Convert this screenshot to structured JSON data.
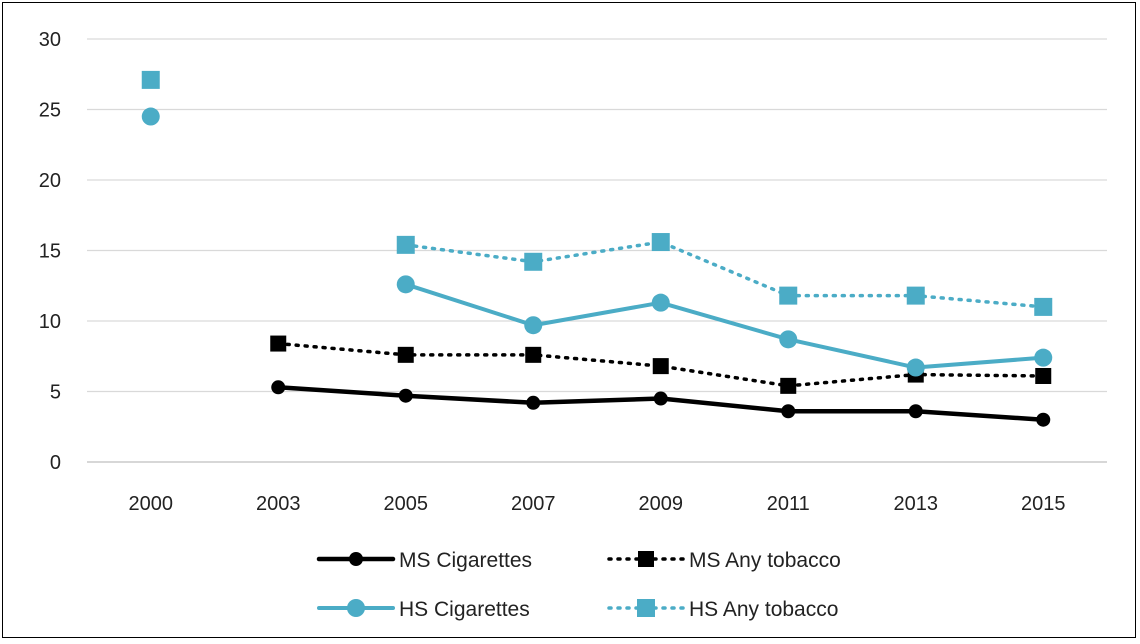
{
  "chart_data": {
    "type": "line",
    "title": "",
    "xlabel": "",
    "ylabel": "",
    "ylim": [
      0,
      30
    ],
    "yticks": [
      "0",
      "5",
      "10",
      "15",
      "20",
      "25",
      "30"
    ],
    "categories": [
      "2000",
      "2003",
      "2005",
      "2007",
      "2009",
      "2011",
      "2013",
      "2015"
    ],
    "grid": "horizontal",
    "legend_position": "bottom",
    "series": [
      {
        "name": "MS Cigarettes",
        "values": [
          null,
          5.3,
          4.7,
          4.2,
          4.5,
          3.6,
          3.6,
          3.0
        ],
        "color": "#000000",
        "style": "solid",
        "marker": "circle"
      },
      {
        "name": "MS Any tobacco",
        "values": [
          null,
          8.4,
          7.6,
          7.6,
          6.8,
          5.4,
          6.2,
          6.1
        ],
        "color": "#000000",
        "style": "dotted",
        "marker": "square"
      },
      {
        "name": "HS Cigarettes",
        "values": [
          24.5,
          null,
          12.6,
          9.7,
          11.3,
          8.7,
          6.7,
          7.4
        ],
        "color": "#4BACC6",
        "style": "solid",
        "marker": "circle"
      },
      {
        "name": "HS Any tobacco",
        "values": [
          27.1,
          null,
          15.4,
          14.2,
          15.6,
          11.8,
          11.8,
          11.0
        ],
        "color": "#4BACC6",
        "style": "dotted",
        "marker": "square"
      }
    ]
  }
}
